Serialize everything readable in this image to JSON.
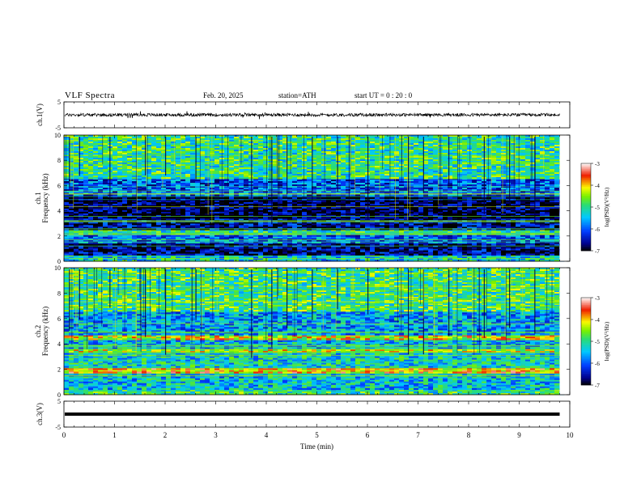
{
  "header": {
    "title": "VLF  Spectra",
    "date": "Feb. 20, 2025",
    "station": "station=ATH",
    "start": "start  UT  =   0  : 20 : 0"
  },
  "chart_data": [
    {
      "type": "line",
      "name": "ch1-waveform",
      "ylabel": "ch.1(V)",
      "ylim": [
        -5,
        5
      ],
      "yticks": [
        "5",
        "-5"
      ],
      "xlim": [
        0,
        10
      ],
      "x_end": 9.8,
      "baseline": 0,
      "noise_amplitude": 0.6
    },
    {
      "type": "heatmap",
      "name": "ch1-spectrogram",
      "ylabel_channel": "ch.1",
      "ylabel": "Frequency  (kHz)",
      "ylim": [
        0,
        10
      ],
      "yticks": [
        "0",
        "2",
        "4",
        "6",
        "8",
        "10"
      ],
      "xlim": [
        0,
        10
      ],
      "x_end": 9.8,
      "colorbar": {
        "label": "log(PSD)(V²/Hz)",
        "range": [
          -7,
          -3
        ],
        "ticks": [
          "-3",
          "-4",
          "-5",
          "-6",
          "-7"
        ]
      },
      "bands_khz": [
        {
          "f": [
            0.0,
            0.5
          ],
          "level": -5.3
        },
        {
          "f": [
            0.5,
            1.5
          ],
          "level": -6.7
        },
        {
          "f": [
            1.5,
            2.2
          ],
          "level": -5.9
        },
        {
          "f": [
            2.2,
            2.5
          ],
          "level": -5.0
        },
        {
          "f": [
            2.5,
            3.5
          ],
          "level": -6.6
        },
        {
          "f": [
            3.5,
            5.2
          ],
          "level": -6.9
        },
        {
          "f": [
            5.2,
            6.6
          ],
          "level": -6.0
        },
        {
          "f": [
            6.6,
            10.0
          ],
          "level": -5.0
        }
      ],
      "spheric_times_min": [
        0.1,
        0.3,
        0.9,
        1.6,
        2.0,
        2.6,
        3.7,
        4.1,
        4.4,
        4.9,
        5.4,
        6.0,
        6.8,
        7.1,
        7.6,
        8.3,
        8.8,
        9.3
      ]
    },
    {
      "type": "heatmap",
      "name": "ch2-spectrogram",
      "ylabel_channel": "ch.2",
      "ylabel": "Frequency  (kHz)",
      "ylim": [
        0,
        10
      ],
      "yticks": [
        "0",
        "2",
        "4",
        "6",
        "8",
        "10"
      ],
      "xlim": [
        0,
        10
      ],
      "x_end": 9.8,
      "colorbar": {
        "label": "log(PSD)(V²/Hz)",
        "range": [
          -7,
          -3
        ],
        "ticks": [
          "-3",
          "-4",
          "-5",
          "-6",
          "-7"
        ]
      },
      "bands_khz": [
        {
          "f": [
            0.0,
            0.5
          ],
          "level": -5.0
        },
        {
          "f": [
            0.5,
            1.8
          ],
          "level": -5.4
        },
        {
          "f": [
            1.8,
            2.2
          ],
          "level": -4.0
        },
        {
          "f": [
            2.2,
            3.4
          ],
          "level": -5.3
        },
        {
          "f": [
            3.4,
            3.7
          ],
          "level": -4.4
        },
        {
          "f": [
            3.7,
            4.4
          ],
          "level": -5.5
        },
        {
          "f": [
            4.4,
            4.7
          ],
          "level": -4.2
        },
        {
          "f": [
            4.7,
            6.6
          ],
          "level": -5.6
        },
        {
          "f": [
            6.6,
            10.0
          ],
          "level": -4.9
        }
      ],
      "spheric_times_min": [
        0.1,
        0.3,
        0.9,
        1.6,
        2.0,
        2.6,
        3.7,
        4.1,
        4.4,
        4.9,
        5.4,
        6.0,
        6.8,
        7.1,
        7.6,
        8.3,
        8.8,
        9.3
      ]
    },
    {
      "type": "line",
      "name": "ch3-waveform",
      "ylabel": "ch.3(V)",
      "ylim": [
        -5,
        5
      ],
      "yticks": [
        "5",
        "-5"
      ],
      "xlim": [
        0,
        10
      ],
      "x_end": 9.8,
      "baseline": 0,
      "noise_amplitude": 0.15,
      "xlabel": "Time  (min)",
      "xticks": [
        "0",
        "1",
        "2",
        "3",
        "4",
        "5",
        "6",
        "7",
        "8",
        "9",
        "10"
      ]
    }
  ]
}
